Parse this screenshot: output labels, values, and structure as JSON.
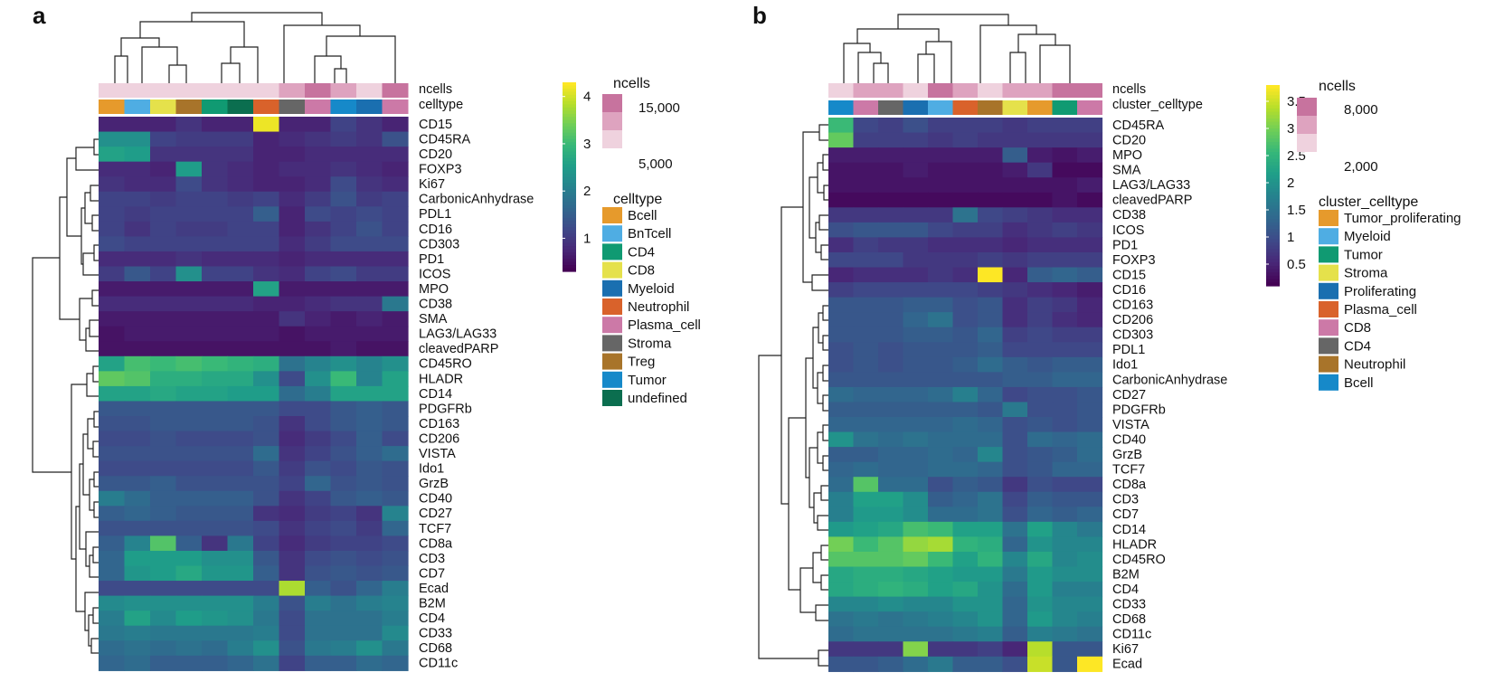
{
  "chart_data": [
    {
      "type": "heatmap",
      "panel": "a",
      "annotation_rows": [
        "ncells",
        "celltype"
      ],
      "columns": [
        "Bcell",
        "BnTcell",
        "CD8",
        "Treg",
        "CD4",
        "undefined",
        "Neutrophil",
        "Stroma",
        "Plasma_cell",
        "Tumor",
        "Myeloid",
        "Plasma_cell"
      ],
      "colorbar": {
        "range": [
          0.3,
          4.3
        ],
        "ticks": [
          "1",
          "2",
          "3",
          "4"
        ]
      },
      "ncells_legend": {
        "title": "ncells",
        "labels": [
          "15,000",
          "5,000"
        ],
        "colors": [
          "#c7739e",
          "#dea3bf",
          "#efd2de"
        ]
      },
      "celltype_legend": {
        "title": "celltype",
        "items": [
          {
            "label": "Bcell",
            "color": "#e69a2c"
          },
          {
            "label": "BnTcell",
            "color": "#4fade3"
          },
          {
            "label": "CD4",
            "color": "#109a72"
          },
          {
            "label": "CD8",
            "color": "#e5e14b"
          },
          {
            "label": "Myeloid",
            "color": "#1a6fb0"
          },
          {
            "label": "Neutrophil",
            "color": "#d9622b"
          },
          {
            "label": "Plasma_cell",
            "color": "#cc79a7"
          },
          {
            "label": "Stroma",
            "color": "#666666"
          },
          {
            "label": "Treg",
            "color": "#a8742a"
          },
          {
            "label": "Tumor",
            "color": "#1689c9"
          },
          {
            "label": "undefined",
            "color": "#0b6e4f"
          }
        ]
      },
      "ncells_levels": [
        0,
        0,
        0,
        0,
        0,
        0,
        0,
        1,
        2,
        1,
        0,
        2
      ],
      "rows": [
        "CD15",
        "CD45RA",
        "CD20",
        "FOXP3",
        "Ki67",
        "CarbonicAnhydrase",
        "PDL1",
        "CD16",
        "CD303",
        "PD1",
        "ICOS",
        "MPO",
        "CD38",
        "SMA",
        "LAG3/LAG33",
        "cleavedPARP",
        "CD45RO",
        "HLADR",
        "CD14",
        "PDGFRb",
        "CD163",
        "CD206",
        "VISTA",
        "Ido1",
        "GrzB",
        "CD40",
        "CD27",
        "TCF7",
        "CD8a",
        "CD3",
        "CD7",
        "Ecad",
        "B2M",
        "CD4",
        "CD33",
        "CD68",
        "CD11c"
      ],
      "values": [
        [
          0.7,
          0.7,
          0.7,
          0.9,
          0.7,
          0.7,
          4.2,
          0.7,
          0.7,
          1.1,
          0.9,
          0.7
        ],
        [
          2.3,
          2.3,
          1.1,
          1.0,
          1.0,
          1.0,
          0.7,
          0.8,
          0.9,
          1.0,
          0.9,
          1.3
        ],
        [
          2.6,
          2.5,
          0.9,
          0.9,
          0.9,
          0.9,
          0.7,
          0.7,
          0.8,
          0.8,
          0.8,
          0.8
        ],
        [
          0.8,
          0.8,
          0.7,
          2.5,
          0.9,
          0.8,
          0.7,
          0.8,
          0.8,
          0.9,
          0.8,
          0.7
        ],
        [
          0.9,
          0.8,
          0.8,
          1.2,
          0.9,
          0.8,
          0.7,
          0.7,
          0.8,
          1.2,
          0.9,
          0.8
        ],
        [
          1.1,
          1.1,
          1.0,
          1.1,
          1.1,
          1.0,
          1.1,
          0.8,
          1.0,
          1.3,
          1.0,
          1.1
        ],
        [
          1.1,
          1.0,
          1.1,
          1.1,
          1.1,
          1.1,
          1.5,
          0.7,
          1.2,
          1.1,
          1.2,
          1.1
        ],
        [
          1.1,
          0.9,
          1.1,
          1.0,
          1.0,
          1.1,
          1.1,
          0.7,
          0.9,
          1.1,
          1.3,
          1.1
        ],
        [
          1.2,
          1.1,
          1.1,
          1.1,
          1.1,
          1.1,
          1.1,
          0.8,
          1.0,
          1.2,
          1.2,
          1.2
        ],
        [
          0.8,
          0.8,
          0.8,
          0.9,
          0.8,
          0.8,
          0.8,
          0.7,
          0.8,
          0.8,
          0.8,
          0.8
        ],
        [
          1.0,
          1.4,
          1.1,
          2.3,
          1.1,
          1.1,
          0.9,
          0.8,
          1.1,
          1.2,
          1.0,
          1.0
        ],
        [
          0.6,
          0.6,
          0.6,
          0.6,
          0.6,
          0.6,
          2.6,
          0.6,
          0.6,
          0.6,
          0.6,
          0.6
        ],
        [
          0.8,
          0.8,
          0.8,
          0.8,
          0.8,
          0.8,
          0.7,
          0.7,
          0.8,
          0.9,
          0.9,
          1.9
        ],
        [
          0.6,
          0.6,
          0.6,
          0.6,
          0.6,
          0.6,
          0.6,
          0.9,
          0.7,
          0.6,
          0.7,
          0.6
        ],
        [
          0.5,
          0.6,
          0.6,
          0.6,
          0.6,
          0.6,
          0.6,
          0.5,
          0.6,
          0.6,
          0.6,
          0.6
        ],
        [
          0.5,
          0.5,
          0.5,
          0.5,
          0.5,
          0.5,
          0.5,
          0.5,
          0.5,
          0.6,
          0.5,
          0.5
        ],
        [
          2.6,
          3.1,
          3.0,
          3.1,
          3.0,
          2.9,
          2.8,
          1.8,
          2.1,
          2.3,
          2.1,
          2.3
        ],
        [
          3.3,
          3.2,
          2.8,
          2.8,
          2.7,
          2.7,
          2.3,
          1.2,
          2.3,
          3.0,
          2.1,
          2.6
        ],
        [
          2.6,
          2.6,
          2.7,
          2.6,
          2.6,
          2.5,
          2.5,
          1.7,
          2.0,
          2.6,
          2.6,
          2.6
        ],
        [
          1.4,
          1.4,
          1.4,
          1.4,
          1.4,
          1.4,
          1.4,
          1.2,
          1.2,
          1.4,
          1.5,
          1.4
        ],
        [
          1.3,
          1.3,
          1.4,
          1.4,
          1.4,
          1.4,
          1.3,
          0.9,
          1.2,
          1.4,
          1.5,
          1.4
        ],
        [
          1.2,
          1.2,
          1.3,
          1.2,
          1.2,
          1.2,
          1.3,
          0.8,
          1.0,
          1.2,
          1.5,
          1.2
        ],
        [
          1.3,
          1.3,
          1.3,
          1.3,
          1.3,
          1.3,
          1.7,
          0.9,
          1.1,
          1.3,
          1.5,
          1.7
        ],
        [
          1.2,
          1.2,
          1.2,
          1.2,
          1.2,
          1.2,
          1.4,
          1.0,
          1.3,
          1.2,
          1.4,
          1.3
        ],
        [
          1.4,
          1.4,
          1.5,
          1.3,
          1.3,
          1.3,
          1.3,
          1.1,
          1.6,
          1.3,
          1.4,
          1.3
        ],
        [
          2.0,
          1.7,
          1.5,
          1.5,
          1.5,
          1.5,
          1.3,
          0.9,
          1.1,
          1.4,
          1.5,
          1.4
        ],
        [
          1.5,
          1.6,
          1.5,
          1.4,
          1.4,
          1.4,
          0.9,
          0.8,
          1.0,
          1.1,
          0.9,
          2.1
        ],
        [
          1.3,
          1.3,
          1.3,
          1.3,
          1.3,
          1.3,
          1.2,
          0.9,
          1.1,
          1.2,
          1.0,
          1.6
        ],
        [
          1.5,
          2.1,
          3.2,
          1.5,
          0.9,
          1.9,
          1.1,
          0.8,
          1.0,
          1.1,
          1.1,
          1.2
        ],
        [
          1.6,
          2.5,
          2.5,
          2.5,
          2.3,
          2.3,
          1.4,
          0.9,
          1.2,
          1.3,
          1.2,
          1.3
        ],
        [
          1.6,
          2.4,
          2.5,
          2.7,
          2.4,
          2.4,
          1.5,
          0.9,
          1.3,
          1.4,
          1.3,
          1.4
        ],
        [
          1.2,
          1.2,
          1.2,
          1.2,
          1.2,
          1.2,
          1.2,
          3.8,
          1.5,
          1.3,
          1.6,
          2.0
        ],
        [
          2.2,
          2.3,
          2.3,
          2.3,
          2.3,
          2.3,
          2.0,
          1.3,
          2.0,
          1.8,
          2.0,
          2.1
        ],
        [
          2.0,
          2.6,
          2.2,
          2.5,
          2.4,
          2.3,
          1.9,
          1.2,
          1.8,
          1.8,
          1.8,
          2.0
        ],
        [
          1.9,
          2.0,
          1.9,
          1.9,
          1.9,
          1.9,
          2.0,
          1.2,
          1.8,
          1.8,
          1.8,
          2.2
        ],
        [
          1.7,
          1.8,
          1.7,
          1.8,
          1.7,
          2.0,
          2.3,
          1.3,
          1.9,
          2.0,
          2.3,
          1.9
        ],
        [
          1.6,
          1.7,
          1.5,
          1.5,
          1.5,
          1.6,
          1.8,
          1.1,
          1.5,
          1.5,
          1.7,
          1.6
        ]
      ]
    },
    {
      "type": "heatmap",
      "panel": "b",
      "annotation_rows": [
        "ncells",
        "cluster_celltype"
      ],
      "columns": [
        "Bcell",
        "CD8",
        "CD4",
        "Proliferating",
        "Myeloid",
        "Plasma_cell",
        "Neutrophil",
        "Stroma",
        "Tumor_proliferating",
        "Tumor",
        "CD8"
      ],
      "colorbar": {
        "range": [
          0.1,
          3.8
        ],
        "ticks": [
          "3.5",
          "3",
          "2.5",
          "2",
          "1.5",
          "1",
          "0.5"
        ]
      },
      "ncells_legend": {
        "title": "ncells",
        "labels": [
          "8,000",
          "2,000"
        ],
        "colors": [
          "#c7739e",
          "#dea3bf",
          "#efd2de"
        ]
      },
      "celltype_legend": {
        "title": "cluster_celltype",
        "items": [
          {
            "label": "Tumor_proliferating",
            "color": "#e69a2c"
          },
          {
            "label": "Myeloid",
            "color": "#4fade3"
          },
          {
            "label": "Tumor",
            "color": "#109a72"
          },
          {
            "label": "Stroma",
            "color": "#e5e14b"
          },
          {
            "label": "Proliferating",
            "color": "#1a6fb0"
          },
          {
            "label": "Plasma_cell",
            "color": "#d9622b"
          },
          {
            "label": "CD8",
            "color": "#cc79a7"
          },
          {
            "label": "CD4",
            "color": "#666666"
          },
          {
            "label": "Neutrophil",
            "color": "#a8742a"
          },
          {
            "label": "Bcell",
            "color": "#1689c9"
          }
        ]
      },
      "ncells_levels": [
        0,
        1,
        1,
        0,
        2,
        1,
        0,
        1,
        1,
        2,
        2
      ],
      "rows": [
        "CD45RA",
        "CD20",
        "MPO",
        "SMA",
        "LAG3/LAG33",
        "cleavedPARP",
        "CD38",
        "ICOS",
        "PD1",
        "FOXP3",
        "CD15",
        "CD16",
        "CD163",
        "CD206",
        "CD303",
        "PDL1",
        "Ido1",
        "CarbonicAnhydrase",
        "CD27",
        "PDGFRb",
        "VISTA",
        "CD40",
        "GrzB",
        "TCF7",
        "CD8a",
        "CD3",
        "CD7",
        "CD14",
        "HLADR",
        "CD45RO",
        "B2M",
        "CD4",
        "CD33",
        "CD68",
        "CD11c",
        "Ki67",
        "Ecad"
      ],
      "values": [
        [
          2.6,
          0.9,
          0.8,
          1.0,
          0.8,
          0.8,
          0.8,
          0.7,
          0.8,
          0.8,
          0.8
        ],
        [
          2.9,
          0.8,
          0.8,
          0.8,
          0.7,
          0.8,
          0.7,
          0.7,
          0.7,
          0.7,
          0.7
        ],
        [
          0.4,
          0.4,
          0.4,
          0.4,
          0.4,
          0.4,
          0.4,
          1.2,
          0.4,
          0.3,
          0.4
        ],
        [
          0.3,
          0.3,
          0.3,
          0.4,
          0.3,
          0.3,
          0.3,
          0.4,
          0.7,
          0.2,
          0.2
        ],
        [
          0.3,
          0.3,
          0.3,
          0.3,
          0.3,
          0.3,
          0.3,
          0.3,
          0.3,
          0.3,
          0.4
        ],
        [
          0.2,
          0.2,
          0.2,
          0.2,
          0.2,
          0.2,
          0.2,
          0.2,
          0.2,
          0.3,
          0.2
        ],
        [
          0.7,
          0.7,
          0.7,
          0.7,
          0.7,
          1.5,
          0.9,
          0.8,
          0.7,
          0.6,
          0.6
        ],
        [
          1.0,
          1.1,
          1.1,
          1.1,
          0.9,
          0.8,
          0.8,
          0.6,
          0.7,
          0.8,
          0.7
        ],
        [
          0.6,
          0.8,
          0.7,
          0.7,
          0.6,
          0.6,
          0.6,
          0.5,
          0.6,
          0.6,
          0.6
        ],
        [
          0.9,
          0.9,
          0.9,
          0.7,
          0.7,
          0.7,
          0.8,
          0.7,
          0.8,
          0.8,
          0.8
        ],
        [
          0.5,
          0.6,
          0.6,
          0.6,
          0.7,
          0.6,
          3.8,
          0.5,
          1.2,
          1.3,
          1.2
        ],
        [
          0.8,
          0.9,
          0.9,
          0.9,
          0.9,
          0.9,
          0.8,
          0.7,
          0.6,
          0.5,
          0.4
        ],
        [
          1.1,
          1.1,
          1.1,
          1.2,
          1.2,
          1.0,
          1.1,
          0.6,
          0.8,
          0.7,
          0.5
        ],
        [
          1.1,
          1.1,
          1.1,
          1.3,
          1.5,
          1.0,
          1.1,
          0.6,
          0.8,
          0.6,
          0.5
        ],
        [
          1.1,
          1.1,
          1.1,
          1.2,
          1.2,
          1.1,
          1.3,
          0.8,
          0.9,
          0.8,
          0.8
        ],
        [
          1.0,
          1.1,
          1.0,
          1.1,
          1.1,
          1.1,
          1.2,
          0.9,
          0.9,
          0.9,
          0.9
        ],
        [
          1.0,
          1.1,
          1.0,
          1.1,
          1.1,
          1.2,
          1.4,
          1.2,
          1.1,
          1.2,
          1.2
        ],
        [
          1.1,
          1.1,
          1.1,
          1.1,
          1.1,
          1.1,
          1.1,
          1.2,
          1.2,
          1.3,
          1.3
        ],
        [
          1.4,
          1.3,
          1.3,
          1.3,
          1.4,
          1.7,
          1.3,
          0.9,
          1.0,
          1.0,
          1.1
        ],
        [
          1.2,
          1.2,
          1.2,
          1.2,
          1.2,
          1.2,
          1.1,
          1.6,
          1.0,
          1.0,
          1.1
        ],
        [
          1.3,
          1.3,
          1.3,
          1.3,
          1.3,
          1.4,
          1.3,
          1.0,
          1.1,
          1.0,
          1.1
        ],
        [
          2.0,
          1.5,
          1.4,
          1.5,
          1.4,
          1.4,
          1.4,
          1.0,
          1.4,
          1.3,
          1.4
        ],
        [
          1.2,
          1.2,
          1.3,
          1.3,
          1.4,
          1.3,
          1.8,
          1.0,
          1.1,
          1.2,
          1.4
        ],
        [
          1.3,
          1.4,
          1.3,
          1.3,
          1.4,
          1.4,
          1.3,
          1.0,
          1.1,
          1.3,
          1.3
        ],
        [
          1.4,
          2.8,
          1.4,
          1.4,
          1.0,
          1.2,
          1.1,
          0.7,
          1.0,
          0.9,
          0.9
        ],
        [
          1.7,
          2.2,
          2.2,
          1.9,
          1.2,
          1.3,
          1.5,
          0.9,
          1.2,
          1.1,
          1.1
        ],
        [
          1.7,
          2.1,
          2.1,
          1.9,
          1.4,
          1.4,
          1.5,
          1.0,
          1.3,
          1.2,
          1.3
        ],
        [
          2.1,
          2.2,
          2.3,
          2.7,
          2.6,
          2.2,
          2.2,
          1.5,
          2.2,
          1.8,
          1.6
        ],
        [
          3.0,
          2.6,
          2.8,
          3.2,
          3.3,
          2.5,
          2.4,
          1.3,
          2.0,
          1.8,
          1.8
        ],
        [
          2.8,
          2.8,
          2.8,
          2.9,
          2.6,
          2.2,
          2.5,
          1.8,
          2.3,
          1.8,
          1.9
        ],
        [
          2.3,
          2.4,
          2.4,
          2.3,
          2.2,
          2.1,
          2.1,
          1.6,
          2.1,
          1.9,
          1.9
        ],
        [
          2.3,
          2.4,
          2.5,
          2.4,
          2.2,
          2.3,
          2.0,
          1.4,
          2.1,
          1.7,
          1.7
        ],
        [
          1.8,
          1.8,
          1.9,
          1.8,
          1.8,
          2.0,
          2.0,
          1.3,
          2.0,
          1.8,
          1.8
        ],
        [
          1.5,
          1.6,
          1.5,
          1.6,
          1.7,
          1.8,
          2.0,
          1.3,
          2.1,
          1.8,
          1.7
        ],
        [
          1.4,
          1.5,
          1.5,
          1.5,
          1.5,
          1.6,
          1.7,
          1.2,
          1.7,
          1.6,
          1.5
        ],
        [
          0.7,
          0.7,
          0.7,
          3.1,
          0.7,
          0.7,
          0.8,
          0.5,
          3.4,
          1.1,
          1.1
        ],
        [
          1.1,
          1.1,
          1.2,
          1.4,
          1.6,
          1.2,
          1.2,
          1.0,
          3.5,
          1.1,
          3.9
        ]
      ]
    }
  ]
}
